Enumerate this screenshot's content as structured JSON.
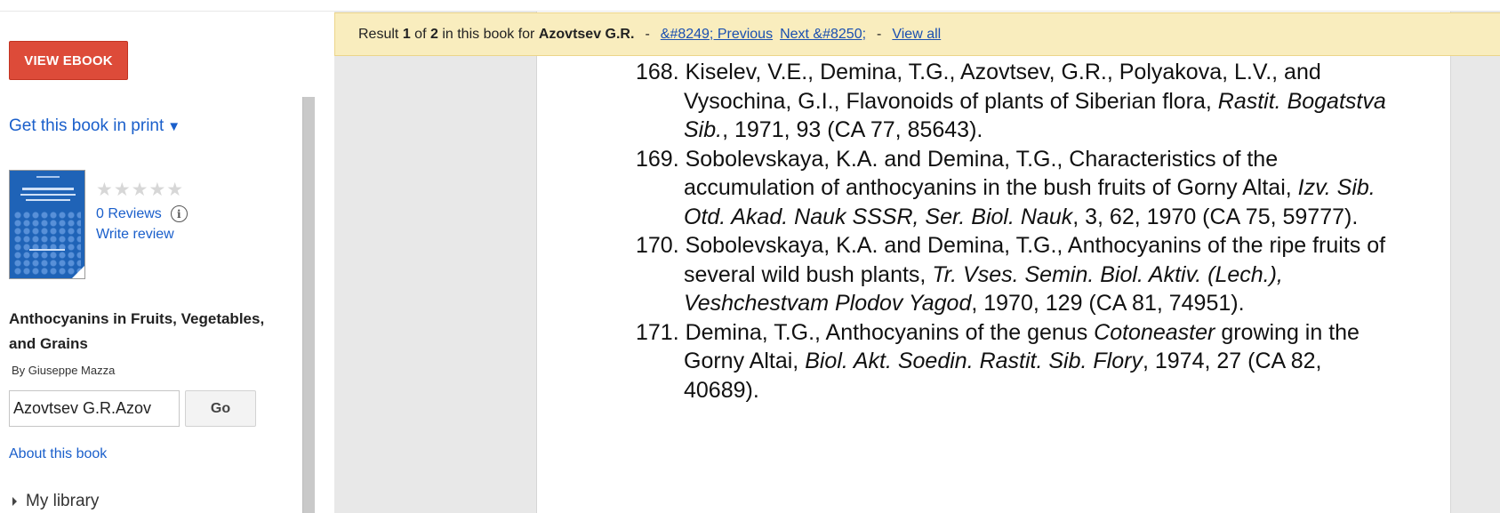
{
  "sidebar": {
    "view_ebook_label": "VIEW EBOOK",
    "get_print_label": "Get this book in print",
    "get_print_arrow": "▼",
    "stars": "★★★★★",
    "reviews_label": "0 Reviews",
    "info_icon": "i",
    "write_review_label": "Write review",
    "book_title": "Anthocyanins in Fruits, Vegetables, and Grains",
    "byline": "By Giuseppe Mazza",
    "search_value": "Azovtsev G.R.Azov",
    "go_label": "Go",
    "about_label": "About this book",
    "my_library_label": "My library"
  },
  "banner": {
    "result_word": "Result",
    "current": "1",
    "of_word": "of",
    "total": "2",
    "in_book_text": "in this book for",
    "query": "Azovtsev G.R.",
    "dash": "-",
    "previous_label": "&#8249; Previous",
    "next_label": "Next &#8250;",
    "view_all_label": "View all"
  },
  "page": {
    "refs": [
      {
        "line1": "168. Kiselev, V.E., Demina, T.G., Azovtsev, G.R., Polyakova, L.V., and Vysochina, G.I., Flavonoids of plants of Siberian flora,",
        "italic": "Rastit. Bogatstva Sib.",
        "tail": ", 1971, 93 (CA 77, 85643)."
      },
      {
        "line1": "169. Sobolevskaya, K.A. and Demina, T.G., Characteristics of the accumulation of anthocyanins in the bush fruits of Gorny Altai,",
        "italic": "Izv. Sib. Otd. Akad. Nauk SSSR, Ser. Biol. Nauk",
        "tail": ", 3, 62, 1970 (CA 75, 59777)."
      },
      {
        "line1": "170. Sobolevskaya, K.A. and Demina, T.G., Anthocyanins of the ripe fruits of several wild bush plants,",
        "italic": "Tr. Vses. Semin. Biol. Aktiv. (Lech.), Veshchestvam Plodov Yagod",
        "tail": ", 1970, 129 (CA 81, 74951)."
      },
      {
        "line1": "171. Demina, T.G., Anthocyanins of the genus",
        "italic": "Cotoneaster",
        "mid": "growing in the Gorny Altai,",
        "italic2": "Biol. Akt. Soedin. Rastit. Sib. Flory",
        "tail": ", 1974, 27 (CA 82, 40689)."
      }
    ]
  }
}
